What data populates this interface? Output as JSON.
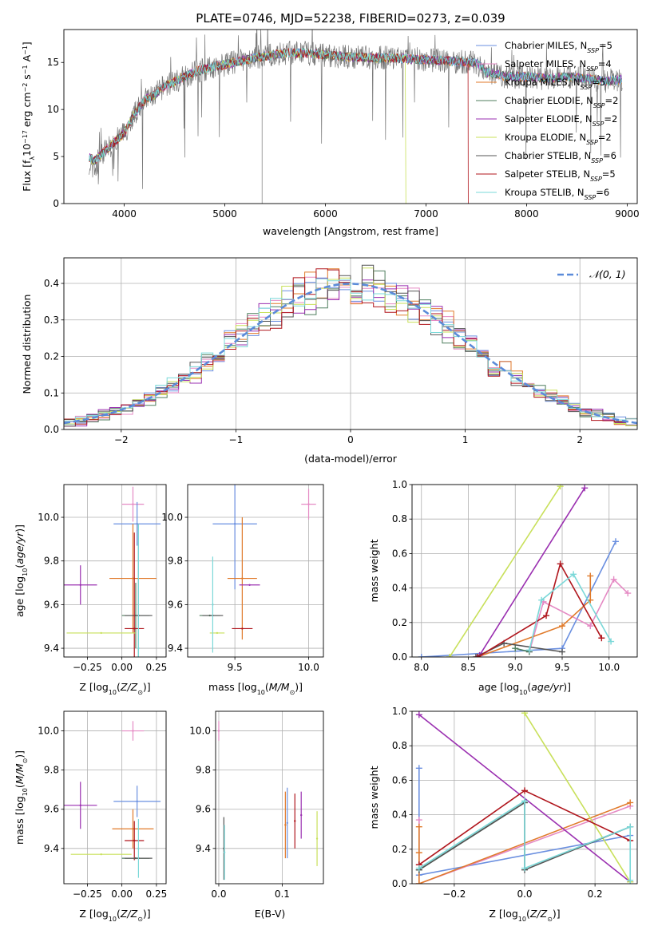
{
  "title": "PLATE=0746, MJD=52238, FIBERID=0273, z=0.039",
  "colors": {
    "Chabrier MILES": "#6a8fe0",
    "Salpeter MILES": "#e58ac4",
    "Kroupa MILES": "#e07a2a",
    "Chabrier ELODIE": "#4f7e5e",
    "Salpeter ELODIE": "#9a2fb0",
    "Kroupa ELODIE": "#c8e05a",
    "Chabrier STELIB": "#555555",
    "Salpeter STELIB": "#b0161d",
    "Kroupa STELIB": "#7ad8d8"
  },
  "chart_data": [
    {
      "type": "line",
      "title": "PLATE=0746, MJD=52238, FIBERID=0273, z=0.039",
      "xlabel": "wavelength [Angstrom, rest frame]",
      "ylabel": "Flux [f_λ10^-17 erg cm^-2 s^-1 A^-1]",
      "xlim": [
        3400,
        9100
      ],
      "ylim": [
        0,
        18.5
      ],
      "xticks": [
        4000,
        5000,
        6000,
        7000,
        8000,
        9000
      ],
      "yticks": [
        0,
        5,
        10,
        15
      ],
      "legend_position": "top-right",
      "legend": [
        "Chabrier MILES, N_SSP=5",
        "Salpeter MILES, N_SSP=4",
        "Kroupa MILES, N_SSP=5",
        "Chabrier ELODIE, N_SSP=2",
        "Salpeter ELODIE, N_SSP=2",
        "Kroupa ELODIE, N_SSP=2",
        "Chabrier STELIB, N_SSP=6",
        "Salpeter STELIB, N_SSP=5",
        "Kroupa STELIB, N_SSP=6"
      ],
      "continuum": {
        "x": [
          3650,
          3700,
          3800,
          3900,
          4000,
          4100,
          4200,
          4300,
          4400,
          4500,
          4700,
          5000,
          5300,
          5600,
          5800,
          6000,
          6200,
          6500,
          6800,
          7000,
          7200,
          7400,
          7500,
          7600,
          7800,
          8000,
          8200,
          8400,
          8600,
          8800,
          8950
        ],
        "y": [
          5.0,
          4.5,
          5.5,
          6.5,
          7.5,
          9.5,
          11.0,
          11.5,
          12.5,
          13.0,
          14.0,
          14.8,
          15.5,
          16.0,
          16.0,
          15.8,
          15.6,
          15.5,
          15.4,
          15.3,
          15.2,
          15.0,
          15.0,
          14.0,
          13.5,
          13.5,
          13.3,
          13.5,
          13.3,
          13.0,
          13.2
        ]
      },
      "cutoffs": [
        {
          "series": "Kroupa ELODIE",
          "x": 6800
        },
        {
          "series": "Salpeter STELIB",
          "x": 7420
        }
      ]
    },
    {
      "type": "histogram",
      "xlabel": "(data-model)/error",
      "ylabel": "Normed distribution",
      "xlim": [
        -2.5,
        2.5
      ],
      "ylim": [
        0,
        0.47
      ],
      "xticks": [
        -2,
        -1,
        0,
        1,
        2
      ],
      "yticks": [
        0.0,
        0.1,
        0.2,
        0.3,
        0.4
      ],
      "grid": true,
      "legend_position": "top-right",
      "legend": [
        "𝒩(0, 1)"
      ],
      "normal_curve": {
        "mean": 0,
        "sigma": 1
      },
      "bin_width": 0.1
    },
    {
      "type": "scatter",
      "xlabel": "Z [log10(Z/Z⊙)]",
      "ylabel": "age  [log10(age/yr)]",
      "xlim": [
        -0.42,
        0.32
      ],
      "ylim": [
        9.36,
        10.15
      ],
      "xticks": [
        -0.25,
        0.0,
        0.25
      ],
      "xtick_labels": [
        "−0.25",
        "0.00",
        "0.25"
      ],
      "yticks": [
        9.4,
        9.6,
        9.8,
        10.0
      ],
      "grid": true,
      "points": [
        {
          "series": "Salpeter MILES",
          "x": 0.08,
          "y": 10.06,
          "xerr": 0.08,
          "yerr": 0.08
        },
        {
          "series": "Chabrier MILES",
          "x": 0.11,
          "y": 9.97,
          "xerr": 0.17,
          "yerr": 0.1
        },
        {
          "series": "Kroupa MILES",
          "x": 0.08,
          "y": 9.72,
          "xerr": 0.17,
          "yerr": 0.25
        },
        {
          "series": "Salpeter ELODIE",
          "x": -0.3,
          "y": 9.69,
          "xerr": 0.12,
          "yerr": 0.09
        },
        {
          "series": "Chabrier ELODIE",
          "x": 0.1,
          "y": 9.55,
          "xerr": 0.1,
          "yerr": 0.15
        },
        {
          "series": "Chabrier STELIB",
          "x": 0.12,
          "y": 9.55,
          "xerr": 0.1,
          "yerr": 0.42
        },
        {
          "series": "Salpeter STELIB",
          "x": 0.09,
          "y": 9.49,
          "xerr": 0.07,
          "yerr": 0.44
        },
        {
          "series": "Kroupa ELODIE",
          "x": -0.15,
          "y": 9.47,
          "xerr": 0.25,
          "yerr": 0.0
        },
        {
          "series": "Kroupa STELIB",
          "x": 0.12,
          "y": 9.4,
          "xerr": 0.0,
          "yerr": 0.57
        }
      ]
    },
    {
      "type": "scatter",
      "xlabel": "mass [log10(M/M⊙)]",
      "xlim": [
        9.18,
        10.1
      ],
      "ylim": [
        9.36,
        10.15
      ],
      "xticks": [
        9.5,
        10.0
      ],
      "yticks": [
        9.4,
        9.6,
        9.8,
        10.0
      ],
      "grid": true,
      "points": [
        {
          "series": "Salpeter MILES",
          "x": 10.0,
          "y": 10.06,
          "xerr": 0.05,
          "yerr": 0.07
        },
        {
          "series": "Chabrier MILES",
          "x": 9.5,
          "y": 9.97,
          "xerr": 0.15,
          "yerr": 0.3
        },
        {
          "series": "Kroupa MILES",
          "x": 9.55,
          "y": 9.72,
          "xerr": 0.1,
          "yerr": 0.28
        },
        {
          "series": "Salpeter ELODIE",
          "x": 9.6,
          "y": 9.69,
          "xerr": 0.07,
          "yerr": 0.0
        },
        {
          "series": "Chabrier ELODIE",
          "x": 9.33,
          "y": 9.55,
          "xerr": 0.07,
          "yerr": 0.0
        },
        {
          "series": "Chabrier STELIB",
          "x": 9.35,
          "y": 9.55,
          "xerr": 0.07,
          "yerr": 0.0
        },
        {
          "series": "Salpeter STELIB",
          "x": 9.55,
          "y": 9.49,
          "xerr": 0.07,
          "yerr": 0.0
        },
        {
          "series": "Kroupa ELODIE",
          "x": 9.38,
          "y": 9.47,
          "xerr": 0.05,
          "yerr": 0.0
        },
        {
          "series": "Kroupa STELIB",
          "x": 9.35,
          "y": 9.6,
          "xerr": 0.0,
          "yerr": 0.22
        }
      ]
    },
    {
      "type": "line",
      "xlabel": "age  [log10(age/yr)]",
      "ylabel": "mass weight",
      "xlim": [
        7.9,
        10.3
      ],
      "ylim": [
        0,
        1.0
      ],
      "xticks": [
        8.0,
        8.5,
        9.0,
        9.5,
        10.0
      ],
      "yticks": [
        0.0,
        0.2,
        0.4,
        0.6,
        0.8,
        1.0
      ],
      "grid": true,
      "series": [
        {
          "name": "Chabrier MILES",
          "x": [
            8.0,
            9.5,
            10.07
          ],
          "y": [
            0.0,
            0.05,
            0.67
          ]
        },
        {
          "name": "Salpeter MILES",
          "x": [
            9.15,
            9.3,
            9.8,
            10.05,
            10.2
          ],
          "y": [
            0.03,
            0.32,
            0.18,
            0.45,
            0.37
          ]
        },
        {
          "name": "Kroupa MILES",
          "x": [
            8.6,
            9.5,
            9.8,
            9.8
          ],
          "y": [
            0.0,
            0.18,
            0.33,
            0.47
          ]
        },
        {
          "name": "Chabrier ELODIE",
          "x": [
            9.0,
            9.15
          ],
          "y": [
            0.05,
            0.03
          ]
        },
        {
          "name": "Salpeter ELODIE",
          "x": [
            8.62,
            9.74
          ],
          "y": [
            0.01,
            0.98
          ]
        },
        {
          "name": "Kroupa ELODIE",
          "x": [
            8.3,
            9.48
          ],
          "y": [
            0.0,
            0.99
          ]
        },
        {
          "name": "Chabrier STELIB",
          "x": [
            8.58,
            8.88,
            9.5
          ],
          "y": [
            0.0,
            0.08,
            0.03
          ]
        },
        {
          "name": "Salpeter STELIB",
          "x": [
            8.6,
            9.33,
            9.48,
            9.92
          ],
          "y": [
            0.0,
            0.24,
            0.54,
            0.11
          ]
        },
        {
          "name": "Kroupa STELIB",
          "x": [
            9.15,
            9.28,
            9.62,
            10.02
          ],
          "y": [
            0.04,
            0.33,
            0.48,
            0.09
          ]
        }
      ]
    },
    {
      "type": "scatter",
      "xlabel": "Z [log10(Z/Z⊙)]",
      "ylabel": "mass [log10(M/M⊙)]",
      "xlim": [
        -0.42,
        0.32
      ],
      "ylim": [
        9.22,
        10.1
      ],
      "xticks": [
        -0.25,
        0.0,
        0.25
      ],
      "xtick_labels": [
        "−0.25",
        "0.00",
        "0.25"
      ],
      "yticks": [
        9.4,
        9.6,
        9.8,
        10.0
      ],
      "grid": true,
      "points": [
        {
          "series": "Salpeter MILES",
          "x": 0.08,
          "y": 10.0,
          "xerr": 0.08,
          "yerr": 0.05
        },
        {
          "series": "Chabrier MILES",
          "x": 0.11,
          "y": 9.64,
          "xerr": 0.17,
          "yerr": 0.08
        },
        {
          "series": "Kroupa MILES",
          "x": 0.08,
          "y": 9.5,
          "xerr": 0.15,
          "yerr": 0.1
        },
        {
          "series": "Salpeter ELODIE",
          "x": -0.3,
          "y": 9.62,
          "xerr": 0.12,
          "yerr": 0.12
        },
        {
          "series": "Salpeter STELIB",
          "x": 0.09,
          "y": 9.44,
          "xerr": 0.07,
          "yerr": 0.1
        },
        {
          "series": "Kroupa ELODIE",
          "x": -0.15,
          "y": 9.37,
          "xerr": 0.22,
          "yerr": 0.0
        },
        {
          "series": "Chabrier ELODIE",
          "x": 0.1,
          "y": 9.35,
          "xerr": 0.1,
          "yerr": 0.0
        },
        {
          "series": "Chabrier STELIB",
          "x": 0.12,
          "y": 9.35,
          "xerr": 0.1,
          "yerr": 0.0
        },
        {
          "series": "Kroupa STELIB",
          "x": 0.12,
          "y": 9.4,
          "xerr": 0.0,
          "yerr": 0.15
        }
      ]
    },
    {
      "type": "scatter",
      "xlabel": "E(B-V)",
      "xlim": [
        -0.005,
        0.165
      ],
      "ylim": [
        9.22,
        10.1
      ],
      "xticks": [
        0.0,
        0.1
      ],
      "yticks": [
        9.4,
        9.6,
        9.8,
        10.0
      ],
      "grid": true,
      "points": [
        {
          "series": "Salpeter MILES",
          "x": 0.0,
          "y": 10.0,
          "xerr": 0.0,
          "yerr": 0.05
        },
        {
          "series": "Chabrier STELIB",
          "x": 0.008,
          "y": 9.4,
          "xerr": 0.0,
          "yerr": 0.16
        },
        {
          "series": "Kroupa STELIB",
          "x": 0.009,
          "y": 9.38,
          "xerr": 0.0,
          "yerr": 0.14
        },
        {
          "series": "Kroupa MILES",
          "x": 0.105,
          "y": 9.52,
          "xerr": 0.0,
          "yerr": 0.17
        },
        {
          "series": "Chabrier MILES",
          "x": 0.108,
          "y": 9.53,
          "xerr": 0.0,
          "yerr": 0.18
        },
        {
          "series": "Salpeter STELIB",
          "x": 0.12,
          "y": 9.54,
          "xerr": 0.0,
          "yerr": 0.14
        },
        {
          "series": "Salpeter ELODIE",
          "x": 0.13,
          "y": 9.57,
          "xerr": 0.0,
          "yerr": 0.12
        },
        {
          "series": "Kroupa ELODIE",
          "x": 0.155,
          "y": 9.45,
          "xerr": 0.0,
          "yerr": 0.14
        }
      ]
    },
    {
      "type": "line",
      "xlabel": "Z [log10(Z/Z⊙)]",
      "ylabel": "mass weight",
      "xlim": [
        -0.32,
        0.32
      ],
      "ylim": [
        0,
        1.0
      ],
      "xticks": [
        -0.2,
        0.0,
        0.2
      ],
      "xtick_labels": [
        "−0.2",
        "0.0",
        "0.2"
      ],
      "yticks": [
        0.0,
        0.2,
        0.4,
        0.6,
        0.8,
        1.0
      ],
      "grid": true,
      "series": [
        {
          "name": "Chabrier MILES",
          "x": [
            -0.3,
            -0.3,
            0.3
          ],
          "y": [
            0.67,
            0.05,
            0.28
          ]
        },
        {
          "name": "Salpeter MILES",
          "x": [
            -0.3,
            -0.3,
            0.3
          ],
          "y": [
            0.37,
            0.0,
            0.45
          ]
        },
        {
          "name": "Kroupa MILES",
          "x": [
            -0.3,
            -0.3,
            -0.3,
            0.3
          ],
          "y": [
            0.33,
            0.18,
            0.0,
            0.47
          ]
        },
        {
          "name": "Chabrier ELODIE",
          "x": [
            -0.3,
            0.0
          ],
          "y": [
            0.08,
            0.47
          ]
        },
        {
          "name": "Salpeter ELODIE",
          "x": [
            -0.3,
            0.3
          ],
          "y": [
            0.98,
            0.01
          ]
        },
        {
          "name": "Kroupa ELODIE",
          "x": [
            0.0,
            0.3
          ],
          "y": [
            0.99,
            0.01
          ]
        },
        {
          "name": "Chabrier STELIB",
          "x": [
            -0.3,
            0.0,
            0.0,
            0.3
          ],
          "y": [
            0.08,
            0.47,
            0.08,
            0.33
          ]
        },
        {
          "name": "Salpeter STELIB",
          "x": [
            -0.3,
            0.0,
            0.3
          ],
          "y": [
            0.11,
            0.54,
            0.25
          ]
        },
        {
          "name": "Kroupa STELIB",
          "x": [
            -0.3,
            0.0,
            0.0,
            0.3,
            0.3
          ],
          "y": [
            0.09,
            0.48,
            0.09,
            0.33,
            0.02
          ]
        }
      ]
    }
  ]
}
